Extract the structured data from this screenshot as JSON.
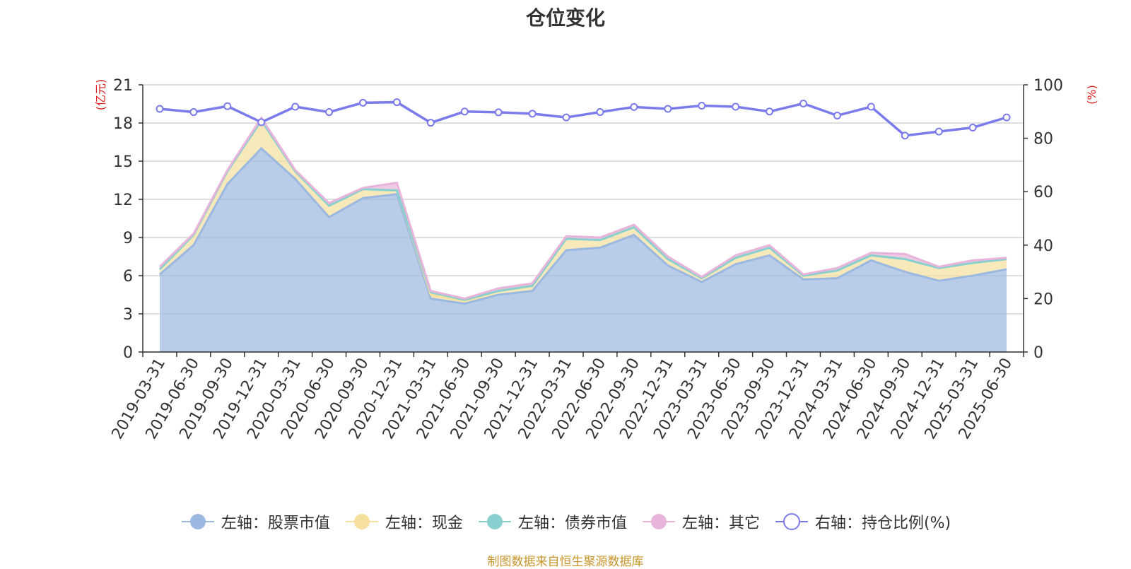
{
  "title": "仓位变化",
  "source": "制图数据来自恒生聚源数据库",
  "chart_data": {
    "type": "area",
    "title": "仓位变化",
    "x": [
      "2019-03-31",
      "2019-06-30",
      "2019-09-30",
      "2019-12-31",
      "2020-03-31",
      "2020-06-30",
      "2020-09-30",
      "2020-12-31",
      "2021-03-31",
      "2021-06-30",
      "2021-09-30",
      "2021-12-31",
      "2022-03-31",
      "2022-06-30",
      "2022-09-30",
      "2022-12-31",
      "2023-03-31",
      "2023-06-30",
      "2023-09-30",
      "2023-12-31",
      "2024-03-31",
      "2024-06-30",
      "2024-09-30",
      "2024-12-31",
      "2025-03-31",
      "2025-06-30"
    ],
    "y_left": {
      "label": "(亿元)",
      "range": [
        0,
        21
      ],
      "ticks": [
        0,
        3,
        6,
        9,
        12,
        15,
        18,
        21
      ]
    },
    "y_right": {
      "label": "(%)",
      "range": [
        0,
        100
      ],
      "ticks": [
        0,
        20,
        40,
        60,
        80,
        100
      ]
    },
    "stacked": true,
    "series": [
      {
        "name": "左轴：股票市值",
        "axis": "left",
        "color": "#9bb8e0",
        "values": [
          6.1,
          8.4,
          13.2,
          16.0,
          13.6,
          10.6,
          12.1,
          12.4,
          4.2,
          3.8,
          4.5,
          4.8,
          8.0,
          8.2,
          9.2,
          6.8,
          5.5,
          6.9,
          7.6,
          5.7,
          5.8,
          7.2,
          6.3,
          5.6,
          6.0,
          6.5
        ]
      },
      {
        "name": "左轴：现金",
        "axis": "left",
        "color": "#f5e09e",
        "values": [
          0.4,
          0.8,
          1.0,
          2.2,
          0.6,
          0.9,
          0.7,
          0.3,
          0.3,
          0.2,
          0.3,
          0.4,
          0.9,
          0.6,
          0.6,
          0.5,
          0.3,
          0.5,
          0.6,
          0.3,
          0.6,
          0.4,
          1.0,
          1.0,
          1.0,
          0.8
        ]
      },
      {
        "name": "左轴：债券市值",
        "axis": "left",
        "color": "#88d0cf",
        "values": [
          0.0,
          0.0,
          0.0,
          0.0,
          0.0,
          0.0,
          0.0,
          0.0,
          0.2,
          0.1,
          0.0,
          0.0,
          0.0,
          0.0,
          0.0,
          0.0,
          0.0,
          0.0,
          0.0,
          0.0,
          0.0,
          0.0,
          0.0,
          0.0,
          0.0,
          0.0
        ]
      },
      {
        "name": "左轴：其它",
        "axis": "left",
        "color": "#e8b4da",
        "values": [
          0.2,
          0.1,
          0.1,
          0.2,
          0.1,
          0.2,
          0.1,
          0.6,
          0.1,
          0.1,
          0.2,
          0.2,
          0.2,
          0.2,
          0.2,
          0.2,
          0.1,
          0.2,
          0.2,
          0.1,
          0.2,
          0.2,
          0.4,
          0.1,
          0.2,
          0.1
        ]
      },
      {
        "name": "右轴：持仓比例(%)",
        "axis": "right",
        "color": "#7b7bec",
        "values": [
          91.0,
          89.8,
          92.0,
          86.0,
          91.8,
          89.8,
          93.3,
          93.5,
          85.8,
          90.0,
          89.7,
          89.2,
          87.8,
          89.8,
          91.7,
          91.0,
          92.2,
          91.8,
          90.0,
          93.0,
          88.5,
          91.8,
          81.0,
          82.5,
          84.0,
          87.8
        ]
      }
    ],
    "legend_position": "bottom",
    "grid": true
  },
  "legend": [
    {
      "label": "左轴：股票市值",
      "color": "#9bb8e0",
      "style": "filled"
    },
    {
      "label": "左轴：现金",
      "color": "#f5e09e",
      "style": "filled"
    },
    {
      "label": "左轴：债券市值",
      "color": "#88d0cf",
      "style": "filled"
    },
    {
      "label": "左轴：其它",
      "color": "#e8b4da",
      "style": "filled"
    },
    {
      "label": "右轴：持仓比例(%)",
      "color": "#7b7bec",
      "style": "hollow"
    }
  ]
}
